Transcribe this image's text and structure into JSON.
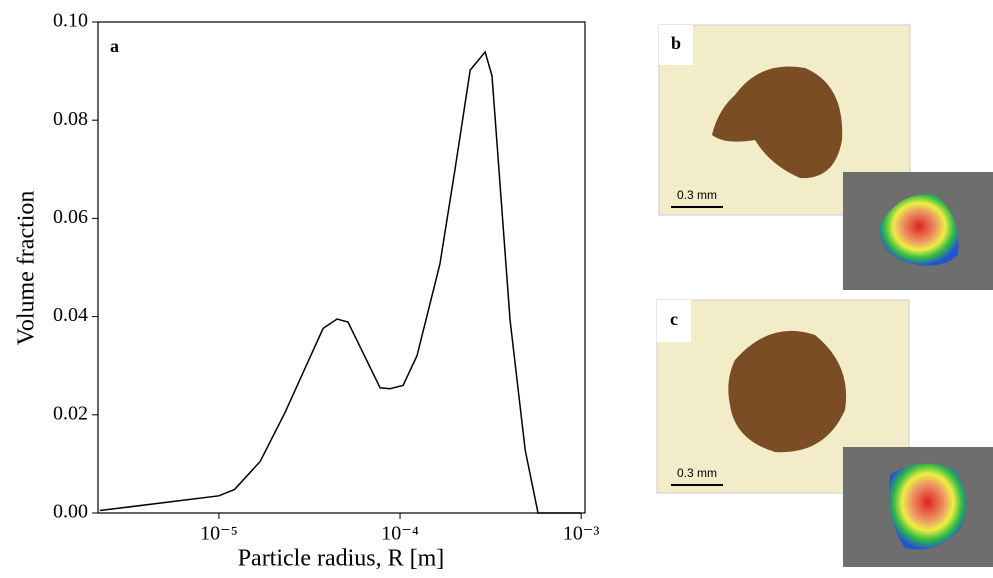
{
  "chart_data": {
    "type": "line",
    "panel_label": "a",
    "xlabel": "Particle radius, R [m]",
    "ylabel": "Volume fraction",
    "xscale": "log",
    "color": "#000000",
    "x": [
      2.2e-06,
      1e-05,
      1.22e-05,
      1.69e-05,
      2.32e-05,
      3.76e-05,
      4.49e-05,
      5.16e-05,
      7.76e-05,
      8.8e-05,
      0.000104,
      0.000124,
      0.000166,
      0.000201,
      0.000244,
      0.000295,
      0.000322,
      0.000405,
      0.000491,
      0.000578,
      0.001
    ],
    "values": [
      0.0005,
      0.0035,
      0.0048,
      0.0105,
      0.0205,
      0.0376,
      0.0395,
      0.0389,
      0.0255,
      0.0253,
      0.026,
      0.032,
      0.0507,
      0.0699,
      0.0902,
      0.0939,
      0.089,
      0.0393,
      0.0128,
      0,
      0
    ],
    "xlim": [
      2.15e-06,
      0.00105
    ],
    "xticks": [
      {
        "value": 1e-05,
        "label": "10⁻⁵"
      },
      {
        "value": 0.0001,
        "label": "10⁻⁴"
      },
      {
        "value": 0.001,
        "label": "10⁻³"
      }
    ],
    "ylim": [
      0,
      0.1
    ],
    "yticks": [
      {
        "value": 0,
        "label": "0.00"
      },
      {
        "value": 0.02,
        "label": "0.02"
      },
      {
        "value": 0.04,
        "label": "0.04"
      },
      {
        "value": 0.06,
        "label": "0.06"
      },
      {
        "value": 0.08,
        "label": "0.08"
      },
      {
        "value": 0.1,
        "label": "0.10"
      }
    ]
  },
  "images": {
    "b": {
      "label": "b",
      "scale": "0.3 mm"
    },
    "c": {
      "label": "c",
      "scale": "0.3 mm"
    }
  }
}
